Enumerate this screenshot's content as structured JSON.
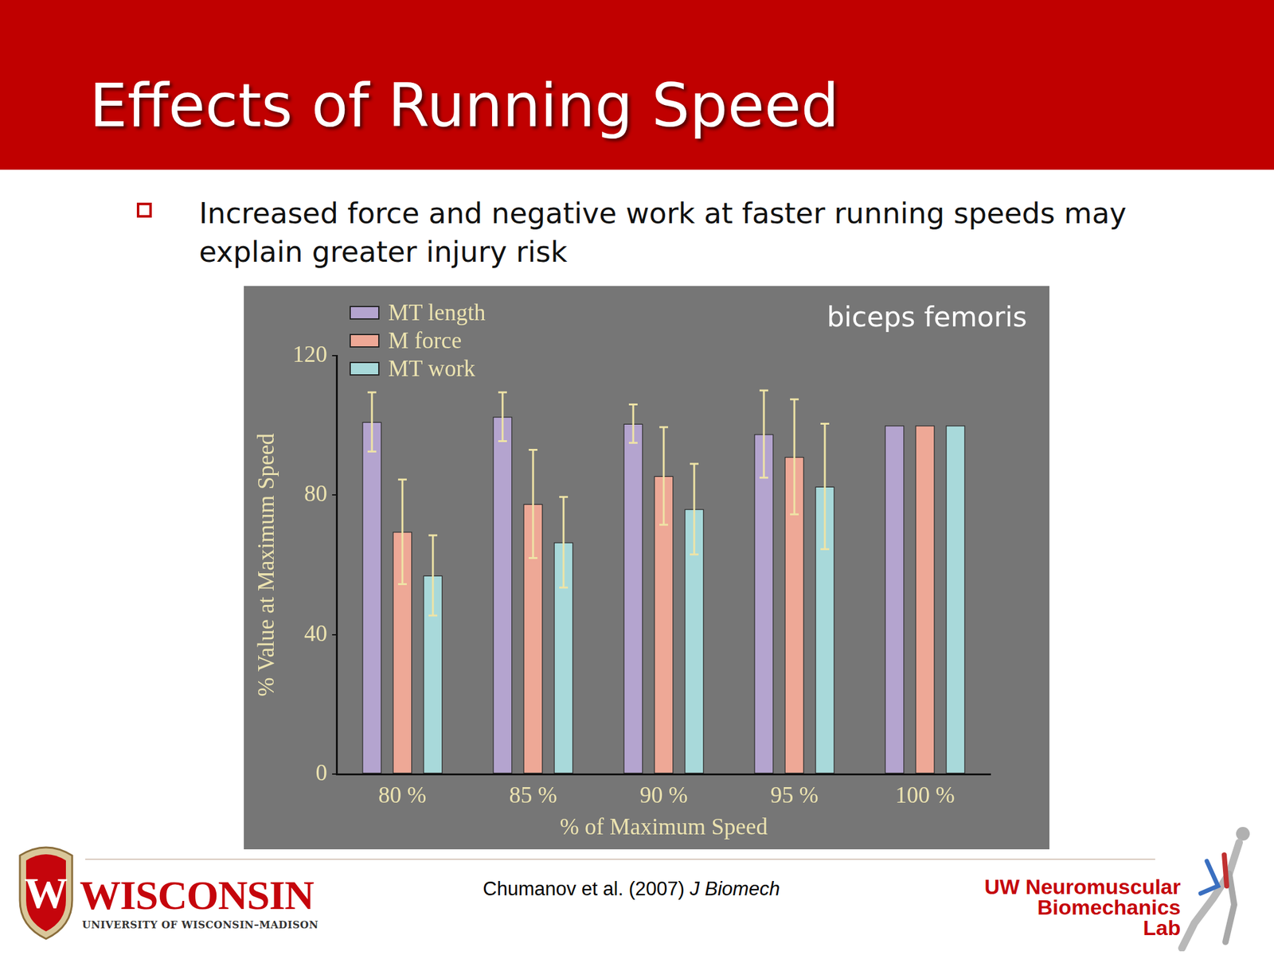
{
  "title": "Effects of Running Speed",
  "bullet": "Increased force and negative work at faster running speeds may explain greater injury risk",
  "citation": {
    "authors": "Chumanov et al. (2007)",
    "journal": "J Biomech"
  },
  "logo_left": {
    "mark": "W",
    "name": "WISCONSIN",
    "subtitle": "UNIVERSITY OF WISCONSIN–MADISON"
  },
  "logo_right": [
    "UW Neuromuscular",
    "Biomechanics",
    "Lab"
  ],
  "chart_data": {
    "type": "bar",
    "annotation": "biceps femoris",
    "x_label": "% of Maximum Speed",
    "y_label": "% Value at Maximum Speed",
    "categories": [
      "80 %",
      "85 %",
      "90 %",
      "95 %",
      "100 %"
    ],
    "series": [
      {
        "name": "MT length",
        "color": "#b4a4cf",
        "values": [
          101,
          102.5,
          100.5,
          97.5,
          100
        ],
        "errors": [
          8.5,
          7,
          5.5,
          12.5,
          null
        ]
      },
      {
        "name": "M force",
        "color": "#eea896",
        "values": [
          69.5,
          77.5,
          85.5,
          91,
          100
        ],
        "errors": [
          15,
          15.5,
          14,
          16.5,
          null
        ]
      },
      {
        "name": "MT work",
        "color": "#a8d9da",
        "values": [
          57,
          66.5,
          76,
          82.5,
          100
        ],
        "errors": [
          11.5,
          13,
          13,
          18,
          null
        ]
      }
    ],
    "ylim": [
      0,
      120
    ],
    "yticks": [
      0,
      40,
      80,
      120
    ],
    "grid": false,
    "legend": "upper left"
  }
}
